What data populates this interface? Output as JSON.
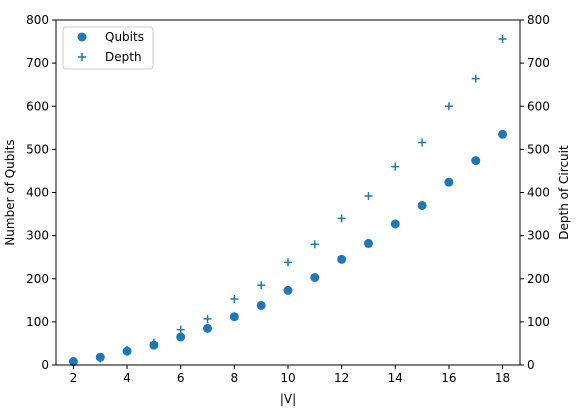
{
  "chart_data": {
    "type": "scatter",
    "xlabel": "|V|",
    "ylabel_left": "Number of Qubits",
    "ylabel_right": "Depth of Circuit",
    "xlim": [
      1.35,
      18.65
    ],
    "ylim": [
      0,
      800
    ],
    "xticks": [
      2,
      4,
      6,
      8,
      10,
      12,
      14,
      16,
      18
    ],
    "yticks": [
      0,
      100,
      200,
      300,
      400,
      500,
      600,
      700,
      800
    ],
    "grid": false,
    "legend_position": "top-left",
    "series": [
      {
        "name": "Qubits",
        "marker": "circle",
        "color": "#1f77b4",
        "axis": "left",
        "x": [
          2,
          3,
          4,
          5,
          6,
          7,
          8,
          9,
          10,
          11,
          12,
          13,
          14,
          15,
          16,
          17,
          18
        ],
        "y": [
          8,
          18,
          32,
          46,
          65,
          85,
          112,
          138,
          173,
          203,
          245,
          282,
          327,
          370,
          424,
          474,
          535
        ]
      },
      {
        "name": "Depth",
        "marker": "plus",
        "color": "#1f77b4",
        "axis": "right",
        "x": [
          2,
          3,
          4,
          5,
          6,
          7,
          8,
          9,
          10,
          11,
          12,
          13,
          14,
          15,
          16,
          17,
          18
        ],
        "y": [
          8,
          15,
          35,
          52,
          82,
          107,
          153,
          185,
          238,
          280,
          340,
          392,
          460,
          516,
          600,
          664,
          756
        ]
      }
    ]
  }
}
